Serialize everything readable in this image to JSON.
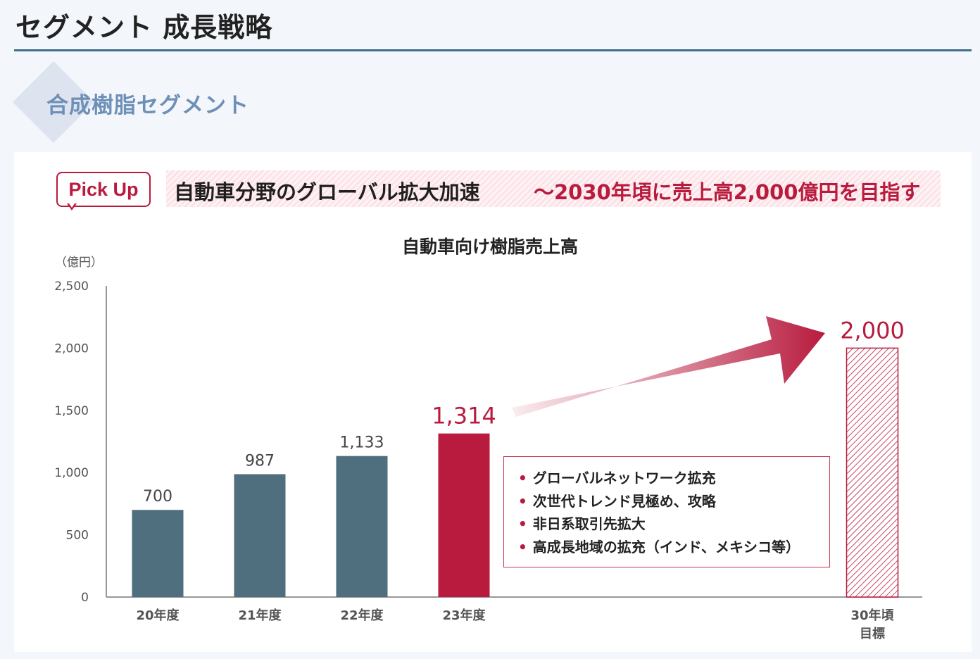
{
  "header": {
    "title": "セグメント 成長戦略"
  },
  "section": {
    "title": "合成樹脂セグメント"
  },
  "pickup": {
    "badge": "Pick Up",
    "headline_main": "自動車分野のグローバル拡大加速",
    "headline_target": "～2030年頃に売上高2,000億円を目指す"
  },
  "notes": [
    "グローバルネットワーク拡充",
    "次世代トレンド見極め、攻略",
    "非日系取引先拡大",
    "高成長地域の拡充（インド、メキシコ等）"
  ],
  "colors": {
    "actual_bar": "#4f6f7e",
    "highlight": "#b81b3e",
    "header_rule": "#3d6f8c"
  },
  "chart_data": {
    "type": "bar",
    "title": "自動車向け樹脂売上高",
    "unit_label": "（億円）",
    "categories": [
      "20年度",
      "21年度",
      "22年度",
      "23年度",
      "30年頃\n目標"
    ],
    "values": [
      700,
      987,
      1133,
      1314,
      2000
    ],
    "value_labels": [
      "700",
      "987",
      "1,133",
      "1,314",
      "2,000"
    ],
    "highlight_index": [
      3
    ],
    "target_index": 4,
    "ylim": [
      0,
      2500
    ],
    "yticks": [
      0,
      500,
      1000,
      1500,
      2000,
      2500
    ],
    "ytick_labels": [
      "0",
      "500",
      "1,000",
      "1,500",
      "2,000",
      "2,500"
    ],
    "grid": false
  }
}
